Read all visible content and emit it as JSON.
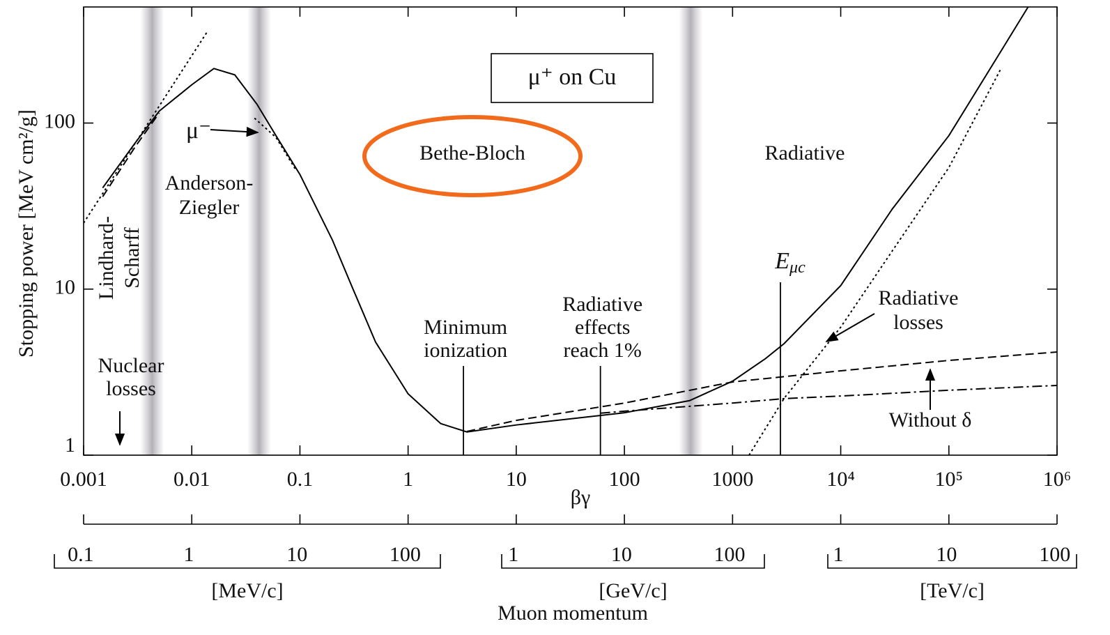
{
  "chart_data": {
    "type": "line",
    "title": "μ⁺ on Cu",
    "x_label": "βγ",
    "y_label": "Stopping power [MeV cm²/g]",
    "log_x": true,
    "log_y": true,
    "xlim": [
      0.001,
      1000000
    ],
    "ylim": [
      1,
      500
    ],
    "xticks": [
      0.001,
      0.01,
      0.1,
      1,
      10,
      100,
      1000,
      {
        "value": 10000,
        "label": "10⁴"
      },
      {
        "value": 100000,
        "label": "10⁵"
      },
      {
        "value": 1000000,
        "label": "10⁶"
      }
    ],
    "yticks": [
      1,
      10,
      100
    ],
    "series": [
      {
        "color": "#000000",
        "dash": "solid",
        "x": [
          0.0015,
          0.003,
          0.005,
          0.01,
          0.016,
          0.025,
          0.04,
          0.06,
          0.1,
          0.2,
          0.3,
          0.5,
          1,
          2,
          3.5,
          10,
          100,
          400,
          1000,
          2000,
          3000,
          10000,
          30000,
          100000,
          300000,
          540000
        ],
        "values": [
          40.7,
          76,
          118,
          170,
          213,
          195,
          130,
          84,
          49,
          19.7,
          10.5,
          4.8,
          2.34,
          1.55,
          1.38,
          1.52,
          1.8,
          2.13,
          2.79,
          3.8,
          4.7,
          10.5,
          30.4,
          84,
          268,
          500
        ]
      },
      {
        "color": "#000000",
        "dash": "dashed",
        "x": [
          3.5,
          10,
          100,
          1000,
          10000,
          100000,
          1000000
        ],
        "values": [
          1.39,
          1.62,
          2.06,
          2.76,
          3.22,
          3.72,
          4.18
        ]
      },
      {
        "color": "#000000",
        "dash": "dashdot",
        "x": [
          60,
          100,
          1000,
          3000,
          10000,
          100000,
          1000000
        ],
        "values": [
          1.79,
          1.84,
          2.06,
          2.19,
          2.27,
          2.46,
          2.63
        ]
      },
      {
        "color": "#000000",
        "dash": "dotted",
        "x": [
          1420,
          3000,
          10000,
          30000,
          100000,
          300000
        ],
        "values": [
          1,
          2.2,
          5.9,
          17,
          54,
          210
        ]
      },
      {
        "color": "#000000",
        "dash": "dotted",
        "x": [
          0.001,
          0.0138
        ],
        "values": [
          25,
          352
        ]
      },
      {
        "color": "#000000",
        "dash": "dashed",
        "x": [
          0.0015,
          0.003,
          0.005
        ],
        "values": [
          36,
          72,
          115
        ]
      },
      {
        "color": "#000000",
        "dash": "dotted",
        "x": [
          0.038,
          0.06,
          0.092
        ],
        "values": [
          107,
          82,
          52
        ]
      }
    ],
    "band_color": "#b4b0b8",
    "bands": [
      0.0043,
      0.042,
      410
    ],
    "markers": [
      {
        "lines": [
          "Minimum",
          "ionization"
        ],
        "x": 3.25
      },
      {
        "lines": [
          "Radiative",
          "effects",
          "reach 1%"
        ],
        "x": 60
      },
      {
        "label": "E",
        "sub": "μc",
        "x": 2770
      }
    ],
    "annotations": {
      "bethe_bloch": "Bethe-Bloch",
      "radiative": "Radiative",
      "anderson_ziegler": [
        "Anderson-",
        "Ziegler"
      ],
      "lindhard_scharff": [
        "Lindhard-",
        "Scharff"
      ],
      "nuclear_losses": [
        "Nuclear",
        "losses"
      ],
      "mu_minus": "μ⁻",
      "radiative_losses": [
        "Radiative",
        "losses"
      ],
      "without_delta": "Without δ"
    },
    "momentum_axis": {
      "label": "Muon momentum",
      "scales": [
        {
          "label": "[MeV/c]",
          "xlim": [
            0.057,
            212
          ],
          "ticks": [
            0.1,
            1,
            10,
            100
          ]
        },
        {
          "label": "[GeV/c]",
          "xlim": [
            0.78,
            210
          ],
          "ticks": [
            1,
            10,
            100
          ]
        },
        {
          "label": "[TeV/c]",
          "xlim": [
            0.8,
            159
          ],
          "ticks": [
            1,
            10,
            100
          ]
        }
      ]
    }
  }
}
